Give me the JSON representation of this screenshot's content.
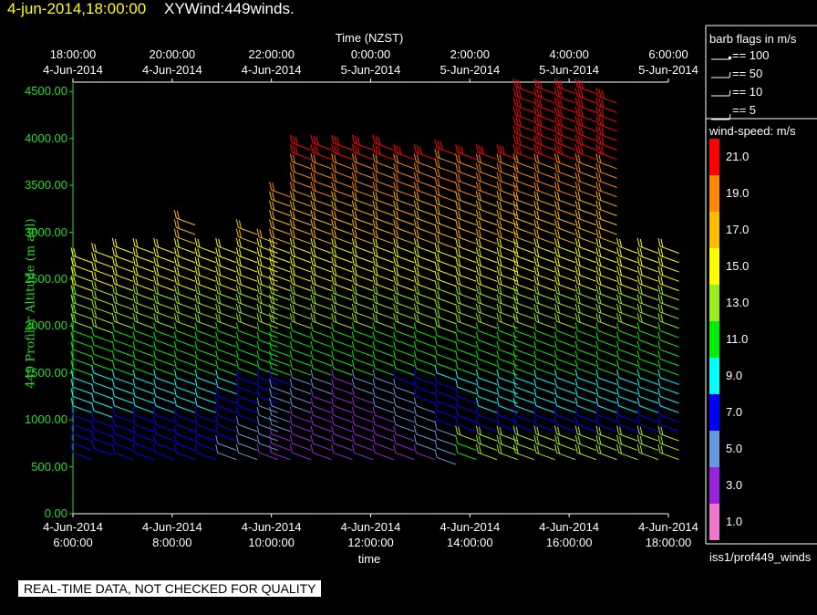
{
  "header": {
    "date_label": "4-jun-2014,18:00:00",
    "title": "XYWind:449winds."
  },
  "top_axis": {
    "title": "Time (NZST)",
    "ticks": [
      {
        "time": "18:00:00",
        "date": "4-Jun-2014"
      },
      {
        "time": "20:00:00",
        "date": "4-Jun-2014"
      },
      {
        "time": "22:00:00",
        "date": "4-Jun-2014"
      },
      {
        "time": "0:00:00",
        "date": "5-Jun-2014"
      },
      {
        "time": "2:00:00",
        "date": "5-Jun-2014"
      },
      {
        "time": "4:00:00",
        "date": "5-Jun-2014"
      },
      {
        "time": "6:00:00",
        "date": "5-Jun-2014"
      }
    ]
  },
  "bottom_axis": {
    "title": "time",
    "ticks": [
      {
        "date": "4-Jun-2014",
        "time": "6:00:00"
      },
      {
        "date": "4-Jun-2014",
        "time": "8:00:00"
      },
      {
        "date": "4-Jun-2014",
        "time": "10:00:00"
      },
      {
        "date": "4-Jun-2014",
        "time": "12:00:00"
      },
      {
        "date": "4-Jun-2014",
        "time": "14:00:00"
      },
      {
        "date": "4-Jun-2014",
        "time": "16:00:00"
      },
      {
        "date": "4-Jun-2014",
        "time": "18:00:00"
      }
    ]
  },
  "y_axis": {
    "label": "449 Profiler Altitude (m agl)",
    "ticks": [
      "0.00",
      "500.00",
      "1000.00",
      "1500.00",
      "2000.00",
      "2500.00",
      "3000.00",
      "3500.00",
      "4000.00",
      "4500.00"
    ]
  },
  "barb_legend": {
    "title": "barb flags in m/s",
    "entries": [
      {
        "label": "== 100"
      },
      {
        "label": "== 50"
      },
      {
        "label": "== 10"
      },
      {
        "label": "== 5"
      }
    ]
  },
  "color_legend": {
    "title": "wind-speed: m/s",
    "bins": [
      {
        "label": "21.0",
        "color": "#ff0000"
      },
      {
        "label": "19.0",
        "color": "#ff8800"
      },
      {
        "label": "17.0",
        "color": "#ffbb00"
      },
      {
        "label": "15.0",
        "color": "#ffff00"
      },
      {
        "label": "13.0",
        "color": "#99ee22"
      },
      {
        "label": "11.0",
        "color": "#00ee00"
      },
      {
        "label": "9.0",
        "color": "#00ffff"
      },
      {
        "label": "7.0",
        "color": "#0000ff"
      },
      {
        "label": "5.0",
        "color": "#6699dd"
      },
      {
        "label": "3.0",
        "color": "#9922dd"
      },
      {
        "label": "1.0",
        "color": "#ee77cc"
      }
    ]
  },
  "path_label": "iss1/prof449_winds",
  "footer_banner": "REAL-TIME DATA, NOT CHECKED FOR QUALITY",
  "chart_data": {
    "type": "scatter",
    "title": "XYWind:449winds.",
    "xlabel": "time",
    "ylabel": "449 Profiler Altitude (m agl)",
    "xlim": [
      "4-Jun-2014 6:00:00",
      "4-Jun-2014 18:00:00"
    ],
    "ylim": [
      0,
      4600
    ],
    "grid": false,
    "series": [
      {
        "name": "wind barbs",
        "columns": [
          {
            "time": "4-Jun-2014 6:00:00",
            "alt_min": 650,
            "alt_max": 2800
          },
          {
            "time": "4-Jun-2014 6:25:00",
            "alt_min": 700,
            "alt_max": 2800
          },
          {
            "time": "4-Jun-2014 6:50:00",
            "alt_min": 650,
            "alt_max": 2850
          },
          {
            "time": "4-Jun-2014 7:15:00",
            "alt_min": 650,
            "alt_max": 2850
          },
          {
            "time": "4-Jun-2014 7:40:00",
            "alt_min": 650,
            "alt_max": 2850
          },
          {
            "time": "4-Jun-2014 8:05:00",
            "alt_min": 650,
            "alt_max": 3150
          },
          {
            "time": "4-Jun-2014 8:30:00",
            "alt_min": 650,
            "alt_max": 2850
          },
          {
            "time": "4-Jun-2014 8:55:00",
            "alt_min": 650,
            "alt_max": 2900
          },
          {
            "time": "4-Jun-2014 9:20:00",
            "alt_min": 650,
            "alt_max": 3050
          },
          {
            "time": "4-Jun-2014 9:45:00",
            "alt_min": 650,
            "alt_max": 2950
          },
          {
            "time": "4-Jun-2014 10:00:00",
            "alt_min": 650,
            "alt_max": 3450
          },
          {
            "time": "4-Jun-2014 10:25:00",
            "alt_min": 650,
            "alt_max": 3950
          },
          {
            "time": "4-Jun-2014 10:50:00",
            "alt_min": 650,
            "alt_max": 3950
          },
          {
            "time": "4-Jun-2014 11:15:00",
            "alt_min": 650,
            "alt_max": 3950
          },
          {
            "time": "4-Jun-2014 11:40:00",
            "alt_min": 650,
            "alt_max": 3950
          },
          {
            "time": "4-Jun-2014 12:05:00",
            "alt_min": 650,
            "alt_max": 3950
          },
          {
            "time": "4-Jun-2014 12:30:00",
            "alt_min": 650,
            "alt_max": 3900
          },
          {
            "time": "4-Jun-2014 12:55:00",
            "alt_min": 650,
            "alt_max": 3900
          },
          {
            "time": "4-Jun-2014 13:20:00",
            "alt_min": 600,
            "alt_max": 3900
          },
          {
            "time": "4-Jun-2014 13:45:00",
            "alt_min": 650,
            "alt_max": 3900
          },
          {
            "time": "4-Jun-2014 14:10:00",
            "alt_min": 650,
            "alt_max": 3850
          },
          {
            "time": "4-Jun-2014 14:35:00",
            "alt_min": 650,
            "alt_max": 3850
          },
          {
            "time": "4-Jun-2014 14:55:00",
            "alt_min": 650,
            "alt_max": 4550
          },
          {
            "time": "4-Jun-2014 15:20:00",
            "alt_min": 650,
            "alt_max": 4550
          },
          {
            "time": "4-Jun-2014 15:45:00",
            "alt_min": 650,
            "alt_max": 4550
          },
          {
            "time": "4-Jun-2014 16:10:00",
            "alt_min": 650,
            "alt_max": 4550
          },
          {
            "time": "4-Jun-2014 16:35:00",
            "alt_min": 650,
            "alt_max": 4500
          },
          {
            "time": "4-Jun-2014 17:00:00",
            "alt_min": 650,
            "alt_max": 2850
          },
          {
            "time": "4-Jun-2014 17:25:00",
            "alt_min": 650,
            "alt_max": 2850
          },
          {
            "time": "4-Jun-2014 17:50:00",
            "alt_min": 650,
            "alt_max": 2850
          }
        ]
      }
    ],
    "color_scale_ms": [
      1,
      3,
      5,
      7,
      9,
      11,
      13,
      15,
      17,
      19,
      21
    ]
  }
}
